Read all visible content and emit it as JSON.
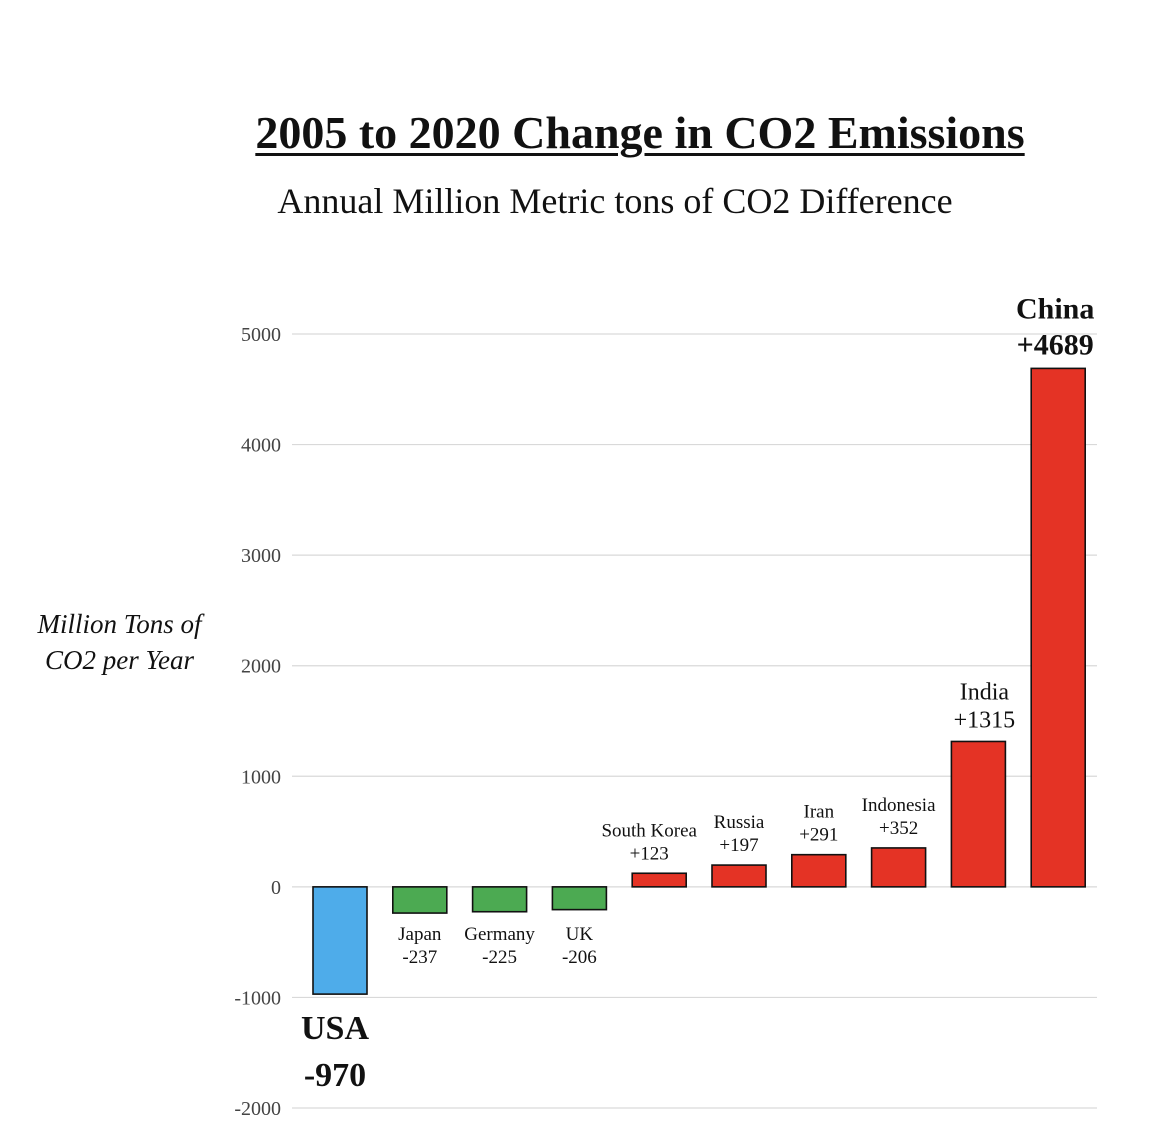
{
  "chart_data": {
    "type": "bar",
    "title": "2005 to 2020 Change in CO2 Emissions",
    "subtitle": "Annual Million Metric tons of CO2 Difference",
    "ylabel_lines": [
      "Million Tons of",
      "CO2 per Year"
    ],
    "ylim": [
      -2000,
      5000
    ],
    "yticks": [
      5000,
      4000,
      3000,
      2000,
      1000,
      0,
      -1000,
      -2000
    ],
    "grid": true,
    "bars": [
      {
        "name": "USA",
        "label": "-970",
        "value": -970,
        "color": "#4eacea",
        "emphasis": true
      },
      {
        "name": "Japan",
        "label": "-237",
        "value": -237,
        "color": "#4caa52",
        "emphasis": false
      },
      {
        "name": "Germany",
        "label": "-225",
        "value": -225,
        "color": "#4caa52",
        "emphasis": false
      },
      {
        "name": "UK",
        "label": "-206",
        "value": -206,
        "color": "#4caa52",
        "emphasis": false
      },
      {
        "name": "South Korea",
        "label": "+123",
        "value": 123,
        "color": "#e43325",
        "emphasis": false
      },
      {
        "name": "Russia",
        "label": "+197",
        "value": 197,
        "color": "#e43325",
        "emphasis": false
      },
      {
        "name": "Iran",
        "label": "+291",
        "value": 291,
        "color": "#e43325",
        "emphasis": false
      },
      {
        "name": "Indonesia",
        "label": "+352",
        "value": 352,
        "color": "#e43325",
        "emphasis": false
      },
      {
        "name": "India",
        "label": "+1315",
        "value": 1315,
        "color": "#e43325",
        "emphasis": false
      },
      {
        "name": "China",
        "label": "+4689",
        "value": 4689,
        "color": "#e43325",
        "emphasis": true
      }
    ]
  }
}
